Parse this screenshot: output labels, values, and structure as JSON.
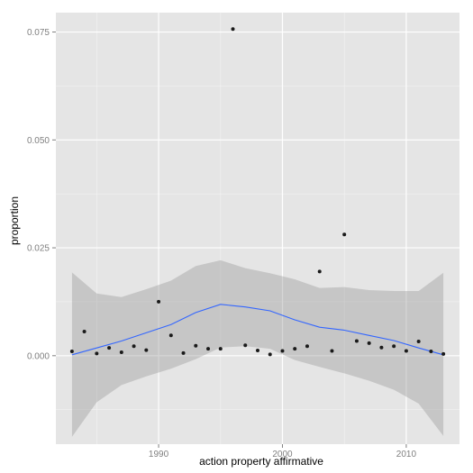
{
  "chart_data": {
    "type": "scatter",
    "xlabel": "action property affirmative",
    "ylabel": "proportion",
    "xlim": [
      1981.7,
      2014.3
    ],
    "ylim": [
      -0.0205,
      0.0795
    ],
    "x_ticks": [
      1990,
      2000,
      2010
    ],
    "x_tick_labels": [
      "1990",
      "2000",
      "2010"
    ],
    "y_ticks": [
      0.0,
      0.025,
      0.05,
      0.075
    ],
    "y_tick_labels": [
      "0.000",
      "0.025",
      "0.050",
      "0.075"
    ],
    "grid": true,
    "colors": {
      "panel": "#e5e5e5",
      "grid_major": "#ffffff",
      "grid_minor": "#f2f2f2",
      "point": "#1a1a1a",
      "smooth_line": "#3366ff",
      "confidence_band": "#999999"
    },
    "points": {
      "x": [
        1983,
        1984,
        1985,
        1986,
        1987,
        1988,
        1989,
        1990,
        1991,
        1992,
        1993,
        1994,
        1995,
        1996,
        1997,
        1998,
        1999,
        2000,
        2001,
        2002,
        2003,
        2004,
        2005,
        2006,
        2007,
        2008,
        2009,
        2010,
        2011,
        2012,
        2013
      ],
      "y": [
        0.001,
        0.0056,
        0.0005,
        0.0018,
        0.0008,
        0.0022,
        0.0013,
        0.0125,
        0.0047,
        0.0006,
        0.0023,
        0.0016,
        0.0016,
        0.0757,
        0.0024,
        0.0012,
        0.0003,
        0.0011,
        0.0016,
        0.0022,
        0.0195,
        0.0011,
        0.0281,
        0.0034,
        0.0029,
        0.0019,
        0.0022,
        0.0011,
        0.0033,
        0.001,
        0.0004
      ]
    },
    "smooth": {
      "x": [
        1983,
        1985,
        1987,
        1989,
        1991,
        1993,
        1995,
        1997,
        1999,
        2001,
        2003,
        2005,
        2007,
        2009,
        2011,
        2013
      ],
      "y": [
        0.0002,
        0.0018,
        0.0034,
        0.0053,
        0.0072,
        0.01,
        0.0119,
        0.0113,
        0.0104,
        0.0083,
        0.0066,
        0.0059,
        0.0047,
        0.0035,
        0.0018,
        0.0002
      ],
      "lower": [
        -0.0188,
        -0.0108,
        -0.0068,
        -0.0048,
        -0.003,
        -0.0008,
        0.0019,
        0.0022,
        0.0016,
        -0.001,
        -0.0026,
        -0.0041,
        -0.0058,
        -0.0079,
        -0.0111,
        -0.0186
      ],
      "upper": [
        0.0193,
        0.0144,
        0.0136,
        0.0154,
        0.0174,
        0.0208,
        0.0221,
        0.0203,
        0.0191,
        0.0177,
        0.0157,
        0.0159,
        0.0152,
        0.015,
        0.015,
        0.0192
      ]
    }
  }
}
